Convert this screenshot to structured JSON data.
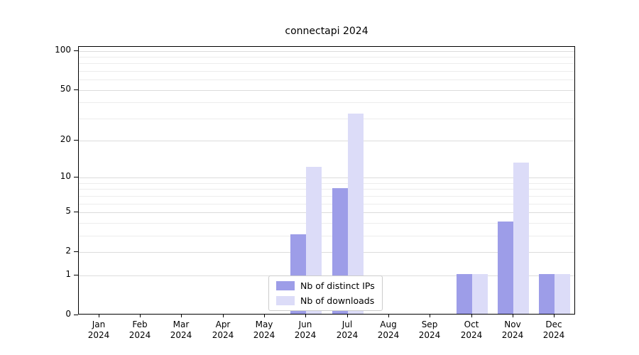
{
  "chart_data": {
    "type": "bar",
    "title": "connectapi 2024",
    "categories": [
      "Jan",
      "Feb",
      "Mar",
      "Apr",
      "May",
      "Jun",
      "Jul",
      "Aug",
      "Sep",
      "Oct",
      "Nov",
      "Dec"
    ],
    "x_tick_year": "2024",
    "series": [
      {
        "name": "Nb of distinct IPs",
        "color": "#9d9de8",
        "values": [
          0,
          0,
          0,
          0,
          0,
          3,
          8,
          0,
          0,
          1,
          4,
          1
        ]
      },
      {
        "name": "Nb of downloads",
        "color": "#dcdcf8",
        "values": [
          0,
          0,
          0,
          0,
          0,
          12,
          32,
          0,
          0,
          1,
          13,
          1
        ]
      }
    ],
    "y_ticks": [
      0,
      1,
      2,
      5,
      10,
      20,
      50,
      100
    ],
    "y_minor_ticks": [
      3,
      4,
      6,
      7,
      8,
      9,
      30,
      40,
      60,
      70,
      80,
      90
    ],
    "y_scale": "log10(1+x)",
    "ylim": [
      0,
      115
    ],
    "grid": true,
    "legend": {
      "position": "bottom-center",
      "entries": [
        "Nb of distinct IPs",
        "Nb of downloads"
      ]
    }
  }
}
